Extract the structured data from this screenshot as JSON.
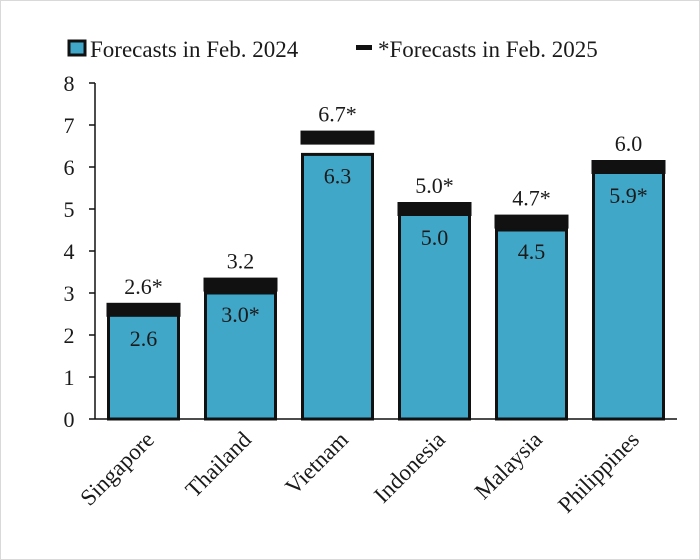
{
  "chart_data": {
    "type": "bar",
    "categories": [
      "Singapore",
      "Thailand",
      "Vietnam",
      "Indonesia",
      "Malaysia",
      "Philippines"
    ],
    "series": [
      {
        "name": "Forecasts in Feb. 2024",
        "values": [
          2.6,
          3.0,
          6.3,
          5.0,
          4.5,
          5.9
        ],
        "labels": [
          "2.6",
          "3.0*",
          "6.3",
          "5.0",
          "4.5",
          "5.9*"
        ],
        "color": "#41a7c8"
      },
      {
        "name": "*Forecasts in Feb. 2025",
        "values": [
          2.6,
          3.2,
          6.7,
          5.0,
          4.7,
          6.0
        ],
        "labels": [
          "2.6*",
          "3.2",
          "6.7*",
          "5.0*",
          "4.7*",
          "6.0"
        ],
        "color": "#111111"
      }
    ],
    "ylim": [
      0,
      8
    ],
    "yticks": [
      0,
      1,
      2,
      3,
      4,
      5,
      6,
      7,
      8
    ],
    "legend_position": "top",
    "grid": false
  },
  "colors": {
    "bar_fill": "#41a7c8",
    "bar_border": "#111111",
    "marker": "#111111"
  }
}
